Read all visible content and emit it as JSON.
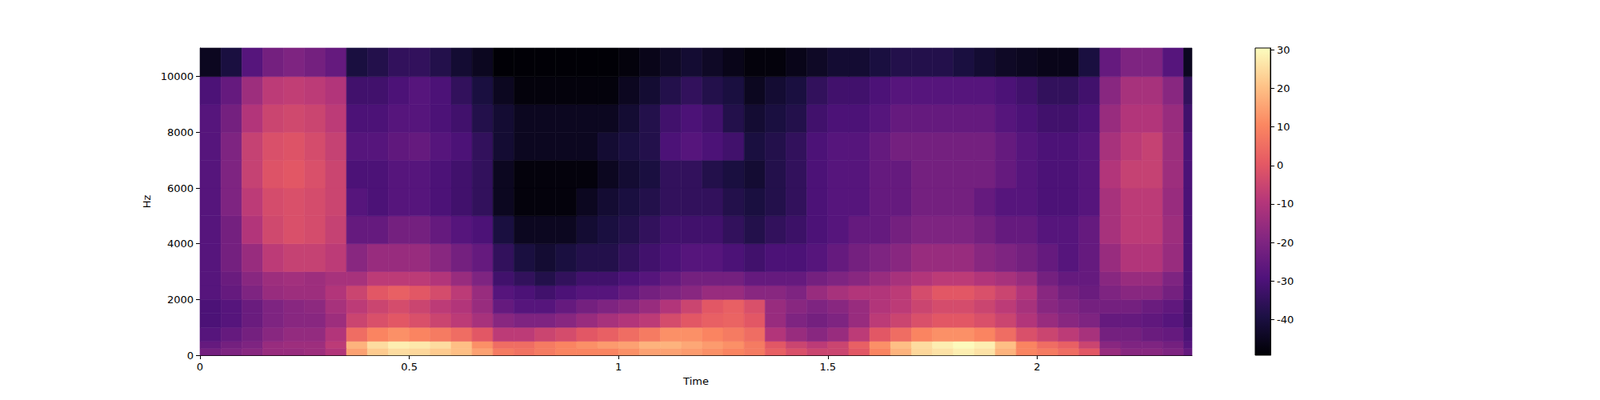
{
  "chart_data": {
    "type": "heatmap",
    "xlabel": "Time",
    "ylabel": "Hz",
    "xlim": [
      0,
      2.37
    ],
    "ylim": [
      0,
      11025
    ],
    "xticks": [
      0,
      0.5,
      1,
      1.5,
      2
    ],
    "yticks": [
      0,
      2000,
      4000,
      6000,
      8000,
      10000
    ],
    "x_edges": [
      0,
      0.05,
      0.1,
      0.15,
      0.2,
      0.25,
      0.3,
      0.35,
      0.4,
      0.45,
      0.5,
      0.55,
      0.6,
      0.65,
      0.7,
      0.75,
      0.8,
      0.85,
      0.9,
      0.95,
      1,
      1.05,
      1.1,
      1.15,
      1.2,
      1.25,
      1.3,
      1.35,
      1.4,
      1.45,
      1.5,
      1.55,
      1.6,
      1.65,
      1.7,
      1.75,
      1.8,
      1.85,
      1.9,
      1.95,
      2,
      2.05,
      2.1,
      2.15,
      2.2,
      2.25,
      2.3,
      2.35,
      2.37
    ],
    "y_edges": [
      0,
      250,
      500,
      1000,
      1500,
      2000,
      2500,
      3000,
      4000,
      5000,
      6000,
      7000,
      8000,
      9000,
      10000,
      11025
    ],
    "cells": [
      [
        -22,
        -20,
        -18,
        -15,
        -15,
        -14,
        -10,
        15,
        22,
        25,
        24,
        22,
        20,
        15,
        8,
        6,
        8,
        10,
        10,
        10,
        12,
        15,
        15,
        14,
        12,
        10,
        8,
        2,
        -2,
        -5,
        -5,
        0,
        10,
        18,
        24,
        26,
        28,
        26,
        18,
        10,
        8,
        5,
        0,
        -15,
        -18,
        -18,
        -20,
        -25
      ],
      [
        -25,
        -22,
        -20,
        -15,
        -14,
        -14,
        -8,
        18,
        25,
        28,
        27,
        25,
        20,
        12,
        5,
        5,
        8,
        10,
        12,
        14,
        15,
        18,
        18,
        16,
        14,
        12,
        8,
        0,
        -5,
        -8,
        -5,
        2,
        12,
        20,
        25,
        28,
        30,
        28,
        20,
        10,
        5,
        2,
        -5,
        -18,
        -20,
        -20,
        -22,
        -28
      ],
      [
        -28,
        -25,
        -22,
        -18,
        -16,
        -16,
        -10,
        5,
        10,
        12,
        10,
        8,
        5,
        0,
        -8,
        -8,
        -5,
        -3,
        0,
        2,
        5,
        8,
        12,
        12,
        10,
        8,
        5,
        -10,
        -15,
        -18,
        -15,
        -8,
        0,
        5,
        10,
        12,
        12,
        10,
        5,
        -2,
        -5,
        -8,
        -12,
        -22,
        -22,
        -24,
        -25,
        -30
      ],
      [
        -30,
        -28,
        -24,
        -20,
        -18,
        -18,
        -14,
        -5,
        -2,
        0,
        -2,
        -5,
        -8,
        -12,
        -18,
        -20,
        -20,
        -18,
        -15,
        -12,
        -10,
        -8,
        -3,
        0,
        2,
        3,
        0,
        -15,
        -20,
        -22,
        -20,
        -15,
        -8,
        -5,
        -2,
        0,
        0,
        -2,
        -5,
        -10,
        -15,
        -18,
        -20,
        -25,
        -25,
        -26,
        -28,
        -32
      ],
      [
        -30,
        -28,
        -24,
        -20,
        -18,
        -17,
        -12,
        -8,
        -5,
        -3,
        -5,
        -8,
        -10,
        -15,
        -25,
        -28,
        -28,
        -25,
        -22,
        -20,
        -18,
        -15,
        -10,
        -5,
        0,
        2,
        -2,
        -15,
        -18,
        -20,
        -18,
        -15,
        -10,
        -8,
        -5,
        -3,
        -3,
        -5,
        -8,
        -12,
        -18,
        -20,
        -22,
        -22,
        -22,
        -24,
        -26,
        -32
      ],
      [
        -28,
        -25,
        -20,
        -15,
        -14,
        -14,
        -10,
        -5,
        0,
        2,
        0,
        -3,
        -8,
        -15,
        -28,
        -30,
        -32,
        -30,
        -28,
        -28,
        -25,
        -22,
        -20,
        -18,
        -15,
        -15,
        -18,
        -18,
        -20,
        -15,
        -12,
        -10,
        -10,
        -8,
        -3,
        0,
        0,
        -2,
        -5,
        -10,
        -18,
        -22,
        -24,
        -20,
        -18,
        -18,
        -22,
        -30
      ],
      [
        -28,
        -24,
        -18,
        -14,
        -13,
        -14,
        -12,
        -12,
        -8,
        -8,
        -8,
        -10,
        -15,
        -20,
        -32,
        -35,
        -38,
        -35,
        -32,
        -32,
        -30,
        -28,
        -25,
        -22,
        -22,
        -22,
        -25,
        -25,
        -25,
        -22,
        -20,
        -18,
        -15,
        -12,
        -10,
        -8,
        -8,
        -10,
        -12,
        -15,
        -22,
        -25,
        -25,
        -18,
        -15,
        -15,
        -20,
        -30
      ],
      [
        -28,
        -22,
        -15,
        -8,
        -6,
        -6,
        -8,
        -18,
        -15,
        -15,
        -15,
        -18,
        -22,
        -25,
        -35,
        -40,
        -42,
        -40,
        -38,
        -38,
        -35,
        -32,
        -30,
        -28,
        -28,
        -30,
        -32,
        -30,
        -30,
        -28,
        -25,
        -22,
        -20,
        -18,
        -15,
        -15,
        -15,
        -18,
        -20,
        -22,
        -25,
        -28,
        -25,
        -15,
        -10,
        -10,
        -15,
        -30
      ],
      [
        -28,
        -22,
        -10,
        -4,
        -2,
        -3,
        -6,
        -25,
        -25,
        -22,
        -22,
        -25,
        -28,
        -30,
        -40,
        -45,
        -45,
        -45,
        -42,
        -40,
        -38,
        -35,
        -32,
        -32,
        -32,
        -35,
        -38,
        -35,
        -33,
        -30,
        -28,
        -25,
        -25,
        -22,
        -20,
        -20,
        -20,
        -22,
        -25,
        -25,
        -28,
        -28,
        -25,
        -12,
        -8,
        -8,
        -14,
        -30
      ],
      [
        -28,
        -20,
        -8,
        -3,
        -2,
        -3,
        -5,
        -28,
        -30,
        -28,
        -28,
        -30,
        -32,
        -35,
        -45,
        -48,
        -48,
        -48,
        -45,
        -42,
        -40,
        -38,
        -35,
        -35,
        -35,
        -38,
        -40,
        -38,
        -35,
        -30,
        -28,
        -28,
        -25,
        -25,
        -22,
        -22,
        -22,
        -25,
        -28,
        -28,
        -30,
        -30,
        -28,
        -12,
        -8,
        -8,
        -15,
        -30
      ],
      [
        -28,
        -20,
        -6,
        -1,
        0,
        -2,
        -5,
        -30,
        -30,
        -28,
        -28,
        -30,
        -32,
        -35,
        -45,
        -48,
        -48,
        -48,
        -48,
        -45,
        -42,
        -40,
        -35,
        -35,
        -38,
        -40,
        -42,
        -38,
        -35,
        -30,
        -28,
        -28,
        -25,
        -25,
        -22,
        -22,
        -22,
        -22,
        -25,
        -28,
        -30,
        -30,
        -28,
        -10,
        -6,
        -6,
        -14,
        -30
      ],
      [
        -28,
        -20,
        -6,
        -2,
        -1,
        -3,
        -6,
        -28,
        -28,
        -26,
        -25,
        -28,
        -30,
        -35,
        -42,
        -45,
        -45,
        -45,
        -45,
        -42,
        -40,
        -38,
        -30,
        -28,
        -30,
        -32,
        -40,
        -38,
        -35,
        -30,
        -28,
        -28,
        -25,
        -22,
        -22,
        -22,
        -22,
        -22,
        -25,
        -28,
        -30,
        -30,
        -28,
        -12,
        -8,
        -6,
        -14,
        -30
      ],
      [
        -28,
        -22,
        -10,
        -5,
        -4,
        -5,
        -8,
        -30,
        -30,
        -28,
        -28,
        -30,
        -32,
        -38,
        -42,
        -45,
        -45,
        -45,
        -45,
        -45,
        -42,
        -38,
        -32,
        -30,
        -32,
        -38,
        -42,
        -40,
        -38,
        -32,
        -30,
        -30,
        -28,
        -25,
        -25,
        -25,
        -25,
        -25,
        -28,
        -30,
        -32,
        -32,
        -30,
        -15,
        -10,
        -10,
        -15,
        -32
      ],
      [
        -30,
        -25,
        -14,
        -8,
        -7,
        -8,
        -10,
        -32,
        -32,
        -30,
        -28,
        -30,
        -35,
        -40,
        -45,
        -48,
        -48,
        -48,
        -48,
        -48,
        -45,
        -42,
        -38,
        -35,
        -38,
        -40,
        -45,
        -42,
        -40,
        -35,
        -32,
        -32,
        -30,
        -28,
        -28,
        -28,
        -28,
        -28,
        -30,
        -32,
        -35,
        -35,
        -32,
        -18,
        -12,
        -12,
        -18,
        -35
      ],
      [
        -45,
        -40,
        -28,
        -22,
        -20,
        -22,
        -25,
        -40,
        -38,
        -35,
        -35,
        -38,
        -42,
        -45,
        -49,
        -49,
        -49,
        -49,
        -49,
        -49,
        -48,
        -46,
        -44,
        -42,
        -44,
        -46,
        -48,
        -48,
        -46,
        -44,
        -42,
        -42,
        -40,
        -38,
        -38,
        -38,
        -40,
        -42,
        -44,
        -45,
        -46,
        -46,
        -40,
        -25,
        -20,
        -20,
        -28,
        -45
      ]
    ],
    "colorbar_range": [
      -49.3,
      30.5
    ],
    "colorbar_ticks": [
      -40,
      -30,
      -20,
      -10,
      0,
      10,
      20,
      30
    ]
  }
}
